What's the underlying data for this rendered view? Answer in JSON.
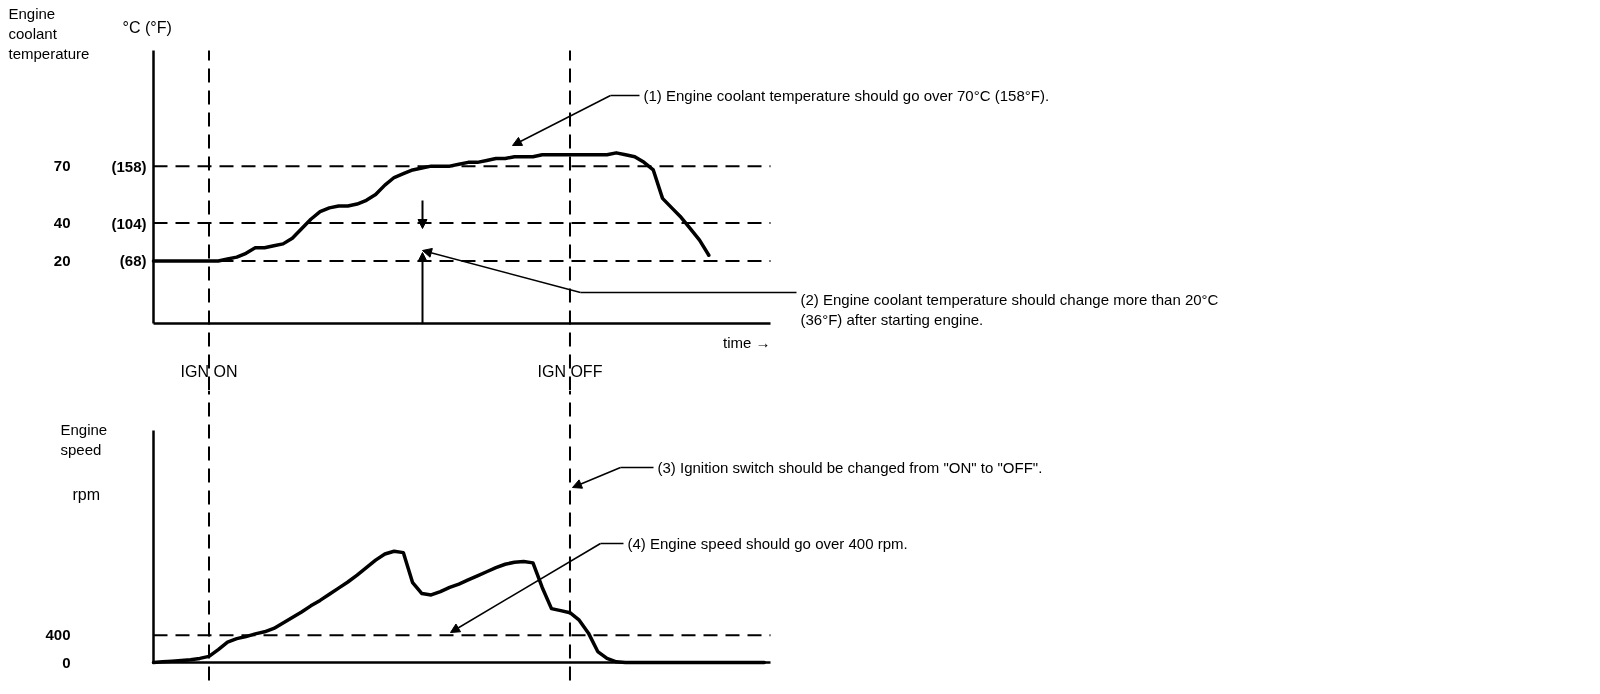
{
  "chart_data": [
    {
      "type": "line",
      "ylabel": "Engine coolant temperature",
      "xlabel": "time →",
      "categories": [
        null,
        null,
        null,
        null,
        null,
        null,
        "IGN ON",
        null,
        null,
        null,
        null,
        null,
        null,
        null,
        null,
        null,
        null,
        null,
        null,
        null,
        null,
        null,
        null,
        null,
        null,
        null,
        null,
        null,
        null,
        null,
        null,
        null,
        null,
        null,
        null,
        null,
        null,
        null,
        null,
        null,
        null,
        null,
        null,
        null,
        null,
        "IGN OFF",
        null,
        null,
        null,
        null,
        null,
        null,
        null,
        null,
        null,
        null,
        null,
        null,
        null,
        null,
        null,
        null,
        null,
        null,
        null,
        null,
        null
      ],
      "series": [
        {
          "color": "#000000",
          "values": [
            20,
            20,
            20,
            20,
            20,
            20,
            20,
            20,
            21,
            22,
            24,
            27,
            27,
            28,
            29,
            32,
            37,
            42,
            46,
            48,
            49,
            49,
            50,
            52,
            55,
            60,
            64,
            66,
            68,
            69,
            70,
            70,
            70,
            71,
            72,
            72,
            73,
            74,
            74,
            75,
            75,
            75,
            76,
            76,
            76,
            76,
            76,
            76,
            76,
            76,
            77,
            76,
            75,
            72,
            68,
            53,
            48,
            43,
            37,
            31,
            23,
            null,
            null,
            null,
            null,
            null,
            null
          ]
        }
      ],
      "ylim": [
        -13,
        131
      ],
      "yticks": [
        20,
        40,
        70
      ],
      "y2lim": [
        8.6,
        267.8
      ],
      "y2ticks": [
        {
          "value": 68,
          "label": "(68)"
        },
        {
          "value": 104,
          "label": "(104)"
        },
        {
          "value": 158,
          "label": "(158)"
        }
      ],
      "line_style": "solid",
      "ref_lines": [
        {
          "axis": "y",
          "value": 20,
          "line_style": "dashed"
        },
        {
          "axis": "y",
          "value": 40,
          "line_style": "dashed"
        },
        {
          "axis": "y",
          "value": 70,
          "line_style": "dashed"
        },
        {
          "axis": "x",
          "value": "IGN ON",
          "line_style": "dashed"
        },
        {
          "axis": "x",
          "value": "IGN OFF",
          "line_style": "dashed"
        }
      ],
      "annotations": [
        "°C (°F)",
        "(1)   Engine coolant temperature should go over 70°C (158°F).",
        "(2)   Engine coolant temperature should change more than 20°C\n       (36°F) after starting engine."
      ]
    },
    {
      "type": "line",
      "ylabel": "Engine speed",
      "tick_labels": "y",
      "categories": [
        null,
        null,
        null,
        null,
        null,
        null,
        "IGN ON",
        null,
        null,
        null,
        null,
        null,
        null,
        null,
        null,
        null,
        null,
        null,
        null,
        null,
        null,
        null,
        null,
        null,
        null,
        null,
        null,
        null,
        null,
        null,
        null,
        null,
        null,
        null,
        null,
        null,
        null,
        null,
        null,
        null,
        null,
        null,
        null,
        null,
        null,
        "IGN OFF",
        null,
        null,
        null,
        null,
        null,
        null,
        null,
        null,
        null,
        null,
        null,
        null,
        null,
        null,
        null,
        null,
        null,
        null,
        null,
        null,
        null
      ],
      "series": [
        {
          "color": "#000000",
          "values": [
            0,
            10,
            20,
            30,
            40,
            60,
            90,
            190,
            300,
            350,
            380,
            420,
            450,
            500,
            580,
            660,
            740,
            830,
            910,
            1000,
            1090,
            1180,
            1280,
            1390,
            1500,
            1590,
            1630,
            1610,
            1170,
            1010,
            990,
            1040,
            1100,
            1150,
            1210,
            1270,
            1330,
            1390,
            1440,
            1470,
            1480,
            1460,
            1100,
            790,
            760,
            730,
            620,
            430,
            160,
            60,
            10,
            0,
            0,
            0,
            0,
            0,
            0,
            0,
            0,
            0,
            0,
            0,
            0,
            0,
            0,
            0,
            0
          ]
        }
      ],
      "ylim": [
        0,
        3400
      ],
      "yticks": [
        0,
        400
      ],
      "line_style": "solid",
      "ref_lines": [
        {
          "axis": "y",
          "value": 400,
          "line_style": "dashed"
        },
        {
          "axis": "x",
          "value": "IGN ON",
          "line_style": "dashed"
        },
        {
          "axis": "x",
          "value": "IGN OFF",
          "line_style": "dashed"
        }
      ],
      "annotations": [
        "rpm",
        "(3)   Ignition switch should be changed from \"ON\" to \"OFF\".",
        "(4)   Engine speed should go over 400 rpm."
      ]
    }
  ]
}
